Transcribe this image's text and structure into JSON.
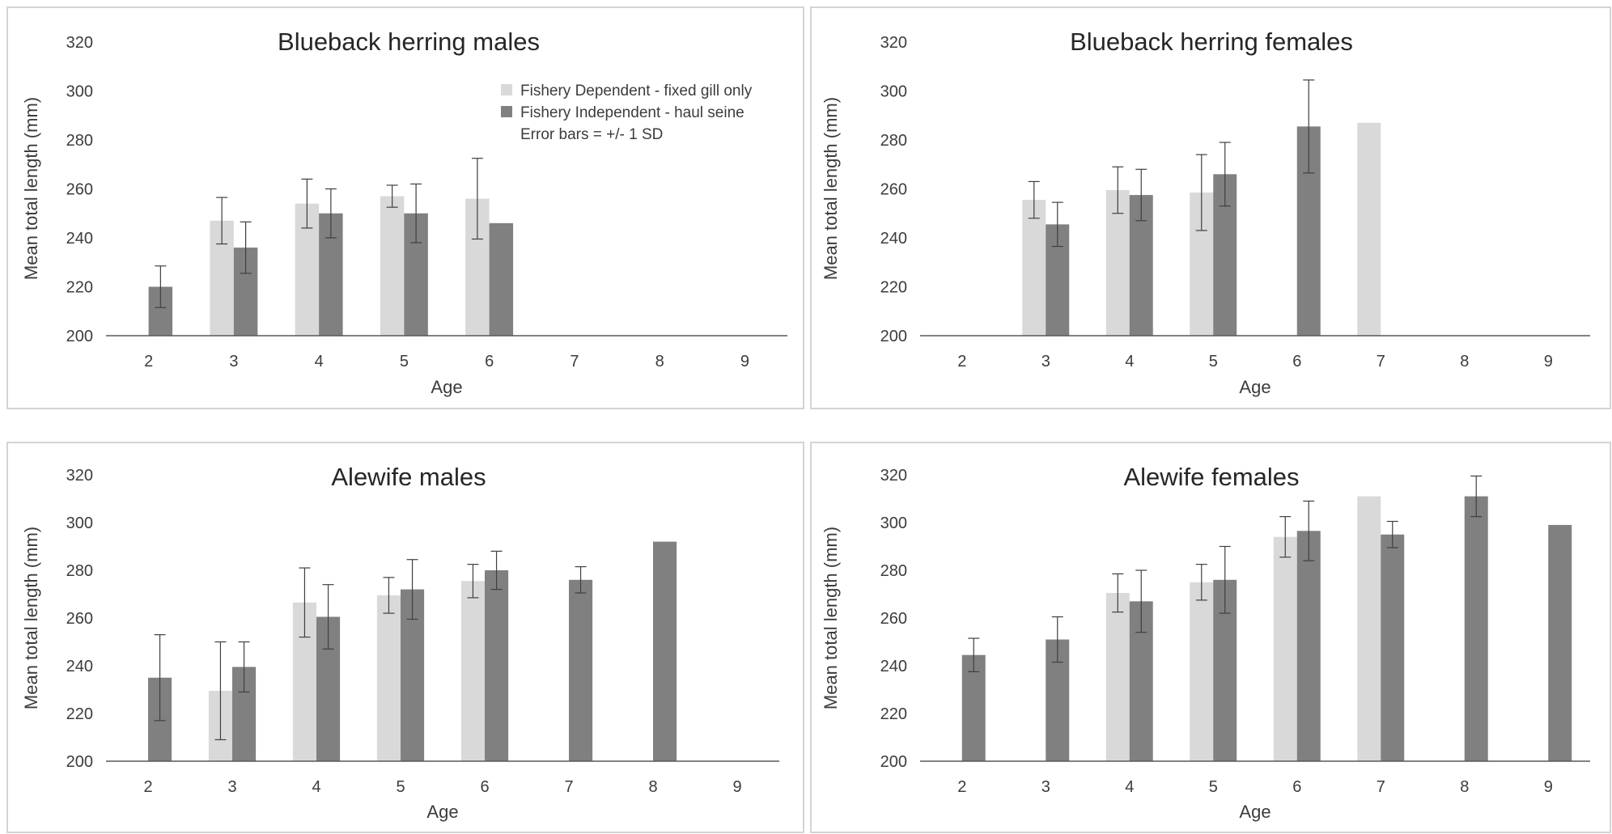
{
  "chart_data": [
    {
      "type": "bar",
      "title": "Blueback herring males",
      "xlabel": "Age",
      "ylabel": "Mean total length (mm)",
      "ylim": [
        200,
        320
      ],
      "yticks": [
        "200",
        "220",
        "240",
        "260",
        "280",
        "300",
        "320"
      ],
      "categories": [
        "2",
        "3",
        "4",
        "5",
        "6",
        "7",
        "8",
        "9"
      ],
      "legend": {
        "placement": "top-right",
        "note": "Error bars = +/- 1 SD"
      },
      "series": [
        {
          "name": "Fishery Dependent - fixed gill only",
          "color": "#d9d9d9",
          "values": [
            null,
            247,
            254,
            257,
            256,
            null,
            null,
            null
          ],
          "sd": [
            null,
            9.5,
            10,
            4.5,
            16.5,
            null,
            null,
            null
          ]
        },
        {
          "name": "Fishery Independent - haul seine",
          "color": "#808080",
          "values": [
            220,
            236,
            250,
            250,
            246,
            null,
            null,
            null
          ],
          "sd": [
            8.5,
            10.5,
            10,
            12,
            null,
            null,
            null,
            null
          ]
        }
      ]
    },
    {
      "type": "bar",
      "title": "Blueback herring females",
      "xlabel": "Age",
      "ylabel": "Mean total length (mm)",
      "ylim": [
        200,
        320
      ],
      "yticks": [
        "200",
        "220",
        "240",
        "260",
        "280",
        "300",
        "320"
      ],
      "categories": [
        "2",
        "3",
        "4",
        "5",
        "6",
        "7",
        "8",
        "9"
      ],
      "series": [
        {
          "color": "#d9d9d9",
          "values": [
            null,
            255.5,
            259.5,
            258.5,
            null,
            287,
            null,
            null
          ],
          "sd": [
            null,
            7.5,
            9.5,
            15.5,
            null,
            null,
            null,
            null
          ]
        },
        {
          "color": "#808080",
          "values": [
            null,
            245.5,
            257.5,
            266,
            285.5,
            null,
            null,
            null
          ],
          "sd": [
            null,
            9,
            10.5,
            13,
            19,
            null,
            null,
            null
          ]
        }
      ]
    },
    {
      "type": "bar",
      "title": "Alewife males",
      "xlabel": "Age",
      "ylabel": "Mean total length (mm)",
      "ylim": [
        200,
        320
      ],
      "yticks": [
        "200",
        "220",
        "240",
        "260",
        "280",
        "300",
        "320"
      ],
      "categories": [
        "2",
        "3",
        "4",
        "5",
        "6",
        "7",
        "8",
        "9"
      ],
      "series": [
        {
          "color": "#d9d9d9",
          "values": [
            null,
            229.5,
            266.5,
            269.5,
            275.5,
            null,
            null,
            null
          ],
          "sd": [
            null,
            20.5,
            14.5,
            7.5,
            7,
            null,
            null,
            null
          ]
        },
        {
          "color": "#808080",
          "values": [
            235,
            239.5,
            260.5,
            272,
            280,
            276,
            292,
            null
          ],
          "sd": [
            18,
            10.5,
            13.5,
            12.5,
            8,
            5.5,
            null,
            null
          ]
        }
      ]
    },
    {
      "type": "bar",
      "title": "Alewife females",
      "xlabel": "Age",
      "ylabel": "Mean total length (mm)",
      "ylim": [
        200,
        320
      ],
      "yticks": [
        "200",
        "220",
        "240",
        "260",
        "280",
        "300",
        "320"
      ],
      "categories": [
        "2",
        "3",
        "4",
        "5",
        "6",
        "7",
        "8",
        "9"
      ],
      "series": [
        {
          "color": "#d9d9d9",
          "values": [
            null,
            null,
            270.5,
            275,
            294,
            311,
            null,
            null
          ],
          "sd": [
            null,
            null,
            8,
            7.5,
            8.5,
            null,
            null,
            null
          ]
        },
        {
          "color": "#808080",
          "values": [
            244.5,
            251,
            267,
            276,
            296.5,
            295,
            311,
            299
          ],
          "sd": [
            7,
            9.5,
            13,
            14,
            12.5,
            5.5,
            8.5,
            null
          ]
        }
      ]
    }
  ]
}
